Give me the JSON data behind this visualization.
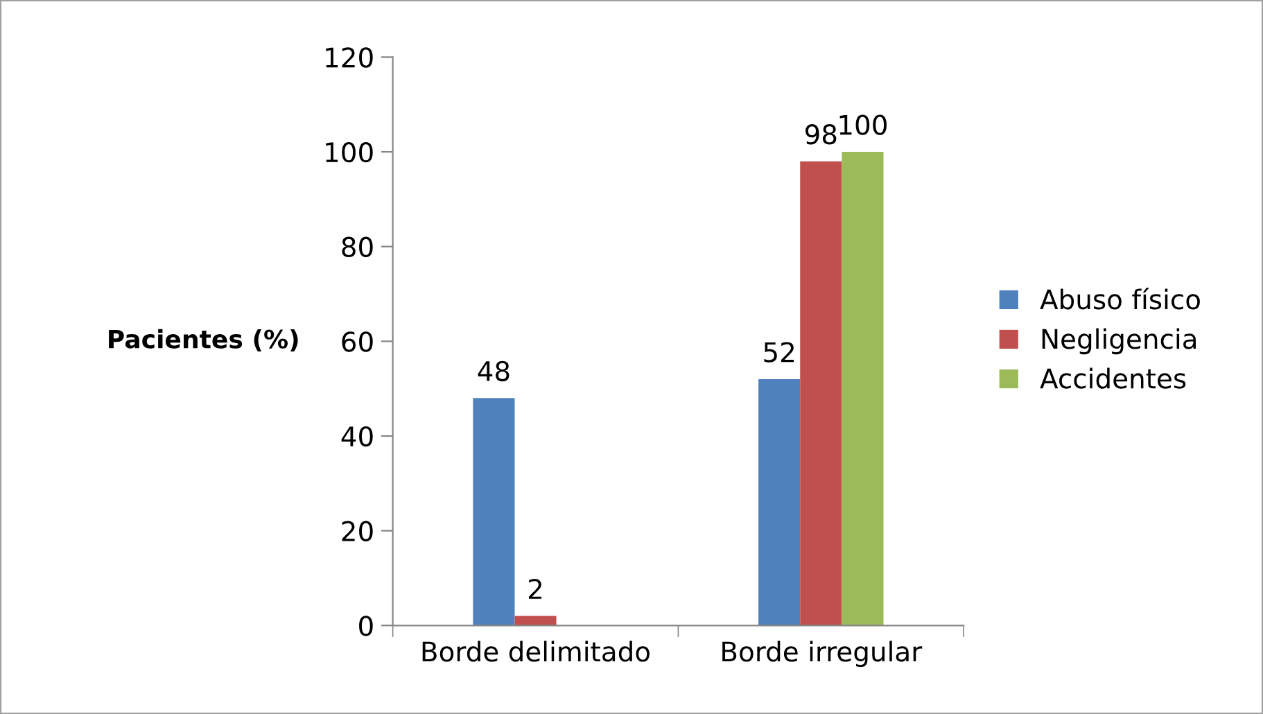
{
  "chart_data": {
    "type": "bar",
    "ylabel": "Pacientes (%)",
    "categories": [
      "Borde delimitado",
      "Borde irregular"
    ],
    "series": [
      {
        "name": "Abuso físico",
        "color": "#4f81bd",
        "values": [
          48,
          52
        ],
        "value_labels": [
          "48",
          "52"
        ]
      },
      {
        "name": "Negligencia",
        "color": "#c0504d",
        "values": [
          2,
          98
        ],
        "value_labels": [
          "2",
          "98"
        ]
      },
      {
        "name": "Accidentes",
        "color": "#9bbb59",
        "values": [
          0,
          100
        ],
        "value_labels": [
          null,
          "100"
        ]
      }
    ],
    "ylim": [
      0,
      120
    ],
    "yticks": [
      0,
      20,
      40,
      60,
      80,
      100,
      120
    ],
    "grid": false,
    "legend": "right"
  }
}
